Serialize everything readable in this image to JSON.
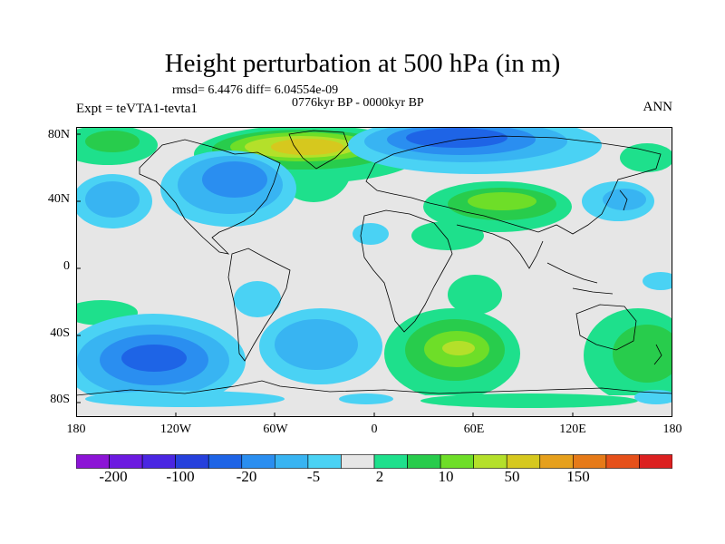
{
  "title": "Height perturbation at 500 hPa (in m)",
  "stats_text": "rmsd= 6.4476 diff= 6.04554e-09",
  "period_text": "0776kyr BP - 0000kyr BP",
  "expt_label": "Expt = teVTA1-tevta1",
  "season_label": "ANN",
  "axes": {
    "y_labels": [
      "80N",
      "40N",
      "0",
      "40S",
      "80S"
    ],
    "x_labels": [
      "180",
      "120W",
      "60W",
      "0",
      "60E",
      "120E",
      "180"
    ]
  },
  "colorbar": {
    "colors": [
      "#8c14d6",
      "#6c1ae0",
      "#4a26e2",
      "#2640dc",
      "#1e64e6",
      "#2a8ef0",
      "#38b4f2",
      "#4ad2f4",
      "#e6e6e6",
      "#1ee08c",
      "#28cc4c",
      "#6ede28",
      "#b4e02a",
      "#d6c81e",
      "#e6a01c",
      "#e67a18",
      "#e6501a",
      "#dc2020"
    ],
    "labels": [
      "-200",
      "-100",
      "-20",
      "-5",
      "2",
      "10",
      "50",
      "150"
    ]
  },
  "colors": {
    "neutral": "#e6e6e6",
    "coast": "#000000"
  }
}
